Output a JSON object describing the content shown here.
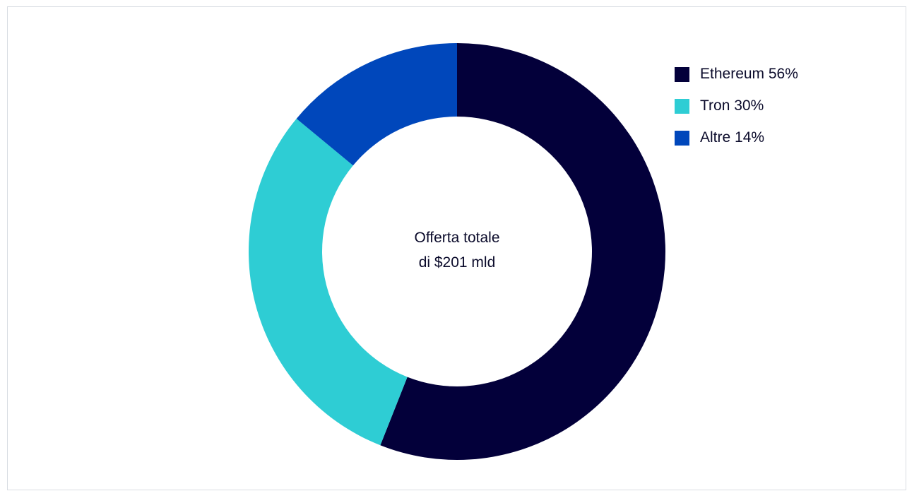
{
  "chart_data": {
    "type": "pie",
    "variant": "donut",
    "categories": [
      "Ethereum",
      "Tron",
      "Altre"
    ],
    "values": [
      56,
      30,
      14
    ],
    "unit": "%",
    "colors": [
      "#03003a",
      "#2ecdd4",
      "#0047bb"
    ],
    "center_label": [
      "Offerta totale",
      "di $201 mld"
    ],
    "legend": [
      {
        "label": "Ethereum 56%",
        "color": "#03003a"
      },
      {
        "label": "Tron 30%",
        "color": "#2ecdd4"
      },
      {
        "label": "Altre 14%",
        "color": "#0047bb"
      }
    ],
    "legend_position": "top-right",
    "start_angle": "12 o'clock",
    "direction": "clockwise"
  }
}
